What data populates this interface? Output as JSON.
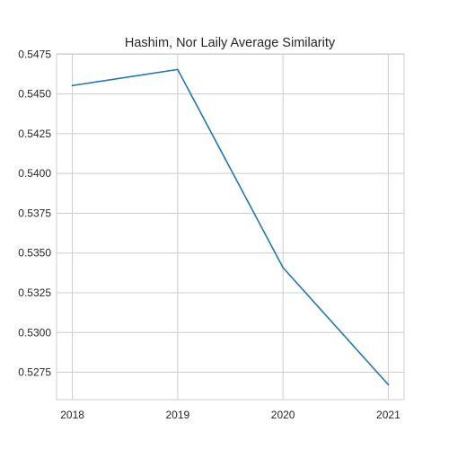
{
  "chart_data": {
    "type": "line",
    "title": "Hashim, Nor Laily Average Similarity",
    "xlabel": "",
    "ylabel": "",
    "x": [
      2018,
      2019,
      2020,
      2021
    ],
    "series": [
      {
        "values": [
          0.54553,
          0.54654,
          0.53408,
          0.52672
        ],
        "color": "#1f77b4"
      }
    ],
    "xticks": [
      "2018",
      "2019",
      "2020",
      "2021"
    ],
    "yticks": [
      "0.5275",
      "0.5300",
      "0.5325",
      "0.5350",
      "0.5375",
      "0.5400",
      "0.5425",
      "0.5450",
      "0.5475"
    ],
    "xlim": [
      2017.85,
      2021.15
    ],
    "ylim": [
      0.52578,
      0.54752
    ],
    "grid": true,
    "legend": "none"
  }
}
